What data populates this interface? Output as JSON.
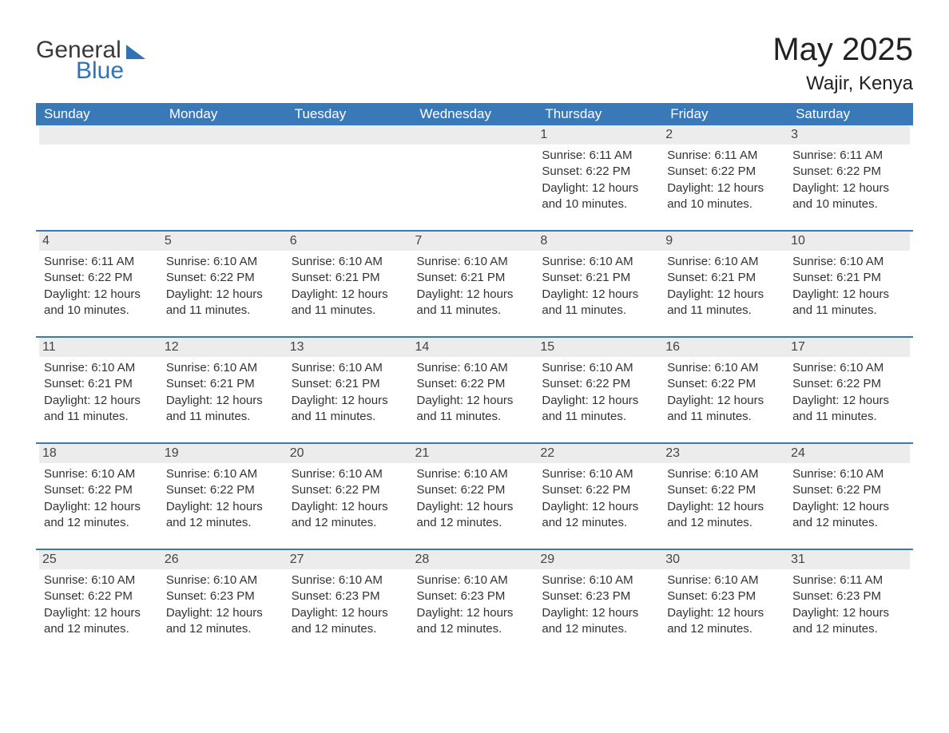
{
  "logo": {
    "word1": "General",
    "word2": "Blue"
  },
  "title": "May 2025",
  "location": "Wajir, Kenya",
  "columns": [
    "Sunday",
    "Monday",
    "Tuesday",
    "Wednesday",
    "Thursday",
    "Friday",
    "Saturday"
  ],
  "colors": {
    "header_bg": "#3a79b7",
    "header_text": "#ffffff",
    "day_bg": "#ececec",
    "row_border": "#3a79b7",
    "body_text": "#333333",
    "logo_blue": "#2f73b5",
    "logo_gray": "#3a3a3a",
    "page_bg": "#ffffff"
  },
  "typography": {
    "month_title_fontsize": 40,
    "location_fontsize": 24,
    "header_fontsize": 17,
    "cell_fontsize": 15,
    "logo_fontsize": 30
  },
  "weeks": [
    [
      null,
      null,
      null,
      null,
      {
        "day": "1",
        "sunrise": "6:11 AM",
        "sunset": "6:22 PM",
        "daylight": "12 hours and 10 minutes."
      },
      {
        "day": "2",
        "sunrise": "6:11 AM",
        "sunset": "6:22 PM",
        "daylight": "12 hours and 10 minutes."
      },
      {
        "day": "3",
        "sunrise": "6:11 AM",
        "sunset": "6:22 PM",
        "daylight": "12 hours and 10 minutes."
      }
    ],
    [
      {
        "day": "4",
        "sunrise": "6:11 AM",
        "sunset": "6:22 PM",
        "daylight": "12 hours and 10 minutes."
      },
      {
        "day": "5",
        "sunrise": "6:10 AM",
        "sunset": "6:22 PM",
        "daylight": "12 hours and 11 minutes."
      },
      {
        "day": "6",
        "sunrise": "6:10 AM",
        "sunset": "6:21 PM",
        "daylight": "12 hours and 11 minutes."
      },
      {
        "day": "7",
        "sunrise": "6:10 AM",
        "sunset": "6:21 PM",
        "daylight": "12 hours and 11 minutes."
      },
      {
        "day": "8",
        "sunrise": "6:10 AM",
        "sunset": "6:21 PM",
        "daylight": "12 hours and 11 minutes."
      },
      {
        "day": "9",
        "sunrise": "6:10 AM",
        "sunset": "6:21 PM",
        "daylight": "12 hours and 11 minutes."
      },
      {
        "day": "10",
        "sunrise": "6:10 AM",
        "sunset": "6:21 PM",
        "daylight": "12 hours and 11 minutes."
      }
    ],
    [
      {
        "day": "11",
        "sunrise": "6:10 AM",
        "sunset": "6:21 PM",
        "daylight": "12 hours and 11 minutes."
      },
      {
        "day": "12",
        "sunrise": "6:10 AM",
        "sunset": "6:21 PM",
        "daylight": "12 hours and 11 minutes."
      },
      {
        "day": "13",
        "sunrise": "6:10 AM",
        "sunset": "6:21 PM",
        "daylight": "12 hours and 11 minutes."
      },
      {
        "day": "14",
        "sunrise": "6:10 AM",
        "sunset": "6:22 PM",
        "daylight": "12 hours and 11 minutes."
      },
      {
        "day": "15",
        "sunrise": "6:10 AM",
        "sunset": "6:22 PM",
        "daylight": "12 hours and 11 minutes."
      },
      {
        "day": "16",
        "sunrise": "6:10 AM",
        "sunset": "6:22 PM",
        "daylight": "12 hours and 11 minutes."
      },
      {
        "day": "17",
        "sunrise": "6:10 AM",
        "sunset": "6:22 PM",
        "daylight": "12 hours and 11 minutes."
      }
    ],
    [
      {
        "day": "18",
        "sunrise": "6:10 AM",
        "sunset": "6:22 PM",
        "daylight": "12 hours and 12 minutes."
      },
      {
        "day": "19",
        "sunrise": "6:10 AM",
        "sunset": "6:22 PM",
        "daylight": "12 hours and 12 minutes."
      },
      {
        "day": "20",
        "sunrise": "6:10 AM",
        "sunset": "6:22 PM",
        "daylight": "12 hours and 12 minutes."
      },
      {
        "day": "21",
        "sunrise": "6:10 AM",
        "sunset": "6:22 PM",
        "daylight": "12 hours and 12 minutes."
      },
      {
        "day": "22",
        "sunrise": "6:10 AM",
        "sunset": "6:22 PM",
        "daylight": "12 hours and 12 minutes."
      },
      {
        "day": "23",
        "sunrise": "6:10 AM",
        "sunset": "6:22 PM",
        "daylight": "12 hours and 12 minutes."
      },
      {
        "day": "24",
        "sunrise": "6:10 AM",
        "sunset": "6:22 PM",
        "daylight": "12 hours and 12 minutes."
      }
    ],
    [
      {
        "day": "25",
        "sunrise": "6:10 AM",
        "sunset": "6:22 PM",
        "daylight": "12 hours and 12 minutes."
      },
      {
        "day": "26",
        "sunrise": "6:10 AM",
        "sunset": "6:23 PM",
        "daylight": "12 hours and 12 minutes."
      },
      {
        "day": "27",
        "sunrise": "6:10 AM",
        "sunset": "6:23 PM",
        "daylight": "12 hours and 12 minutes."
      },
      {
        "day": "28",
        "sunrise": "6:10 AM",
        "sunset": "6:23 PM",
        "daylight": "12 hours and 12 minutes."
      },
      {
        "day": "29",
        "sunrise": "6:10 AM",
        "sunset": "6:23 PM",
        "daylight": "12 hours and 12 minutes."
      },
      {
        "day": "30",
        "sunrise": "6:10 AM",
        "sunset": "6:23 PM",
        "daylight": "12 hours and 12 minutes."
      },
      {
        "day": "31",
        "sunrise": "6:11 AM",
        "sunset": "6:23 PM",
        "daylight": "12 hours and 12 minutes."
      }
    ]
  ],
  "labels": {
    "sunrise": "Sunrise:",
    "sunset": "Sunset:",
    "daylight": "Daylight:"
  }
}
